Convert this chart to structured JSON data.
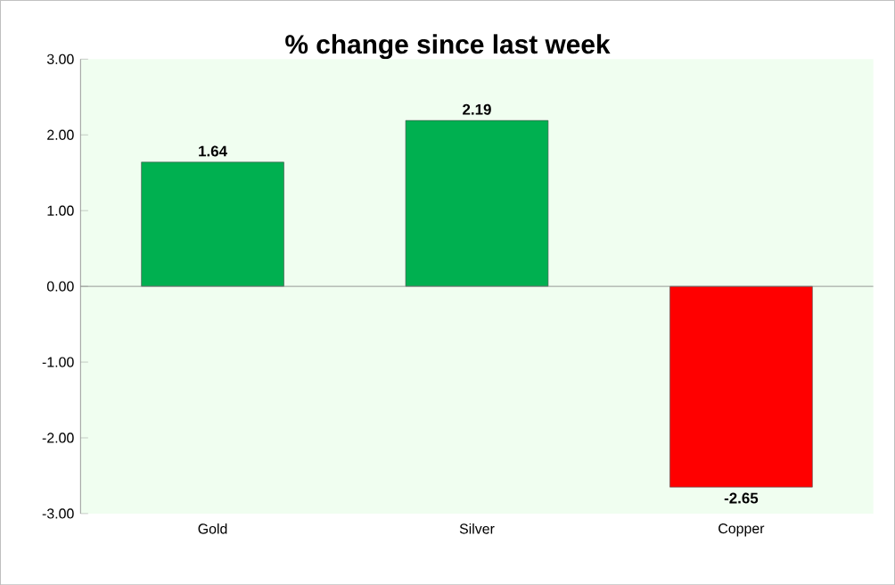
{
  "chart_data": {
    "type": "bar",
    "title": "% change since last week",
    "categories": [
      "Gold",
      "Silver",
      "Copper"
    ],
    "values": [
      1.64,
      2.19,
      -2.65
    ],
    "colors": [
      "#00b050",
      "#00b050",
      "#ff0000"
    ],
    "ylim": [
      -3,
      3
    ],
    "yticks": [
      {
        "value": -3,
        "label": "-3.00"
      },
      {
        "value": -2,
        "label": "-2.00"
      },
      {
        "value": -1,
        "label": "-1.00"
      },
      {
        "value": 0,
        "label": "0.00"
      },
      {
        "value": 1,
        "label": "1.00"
      },
      {
        "value": 2,
        "label": "2.00"
      },
      {
        "value": 3,
        "label": "3.00"
      }
    ],
    "data_labels": true
  }
}
